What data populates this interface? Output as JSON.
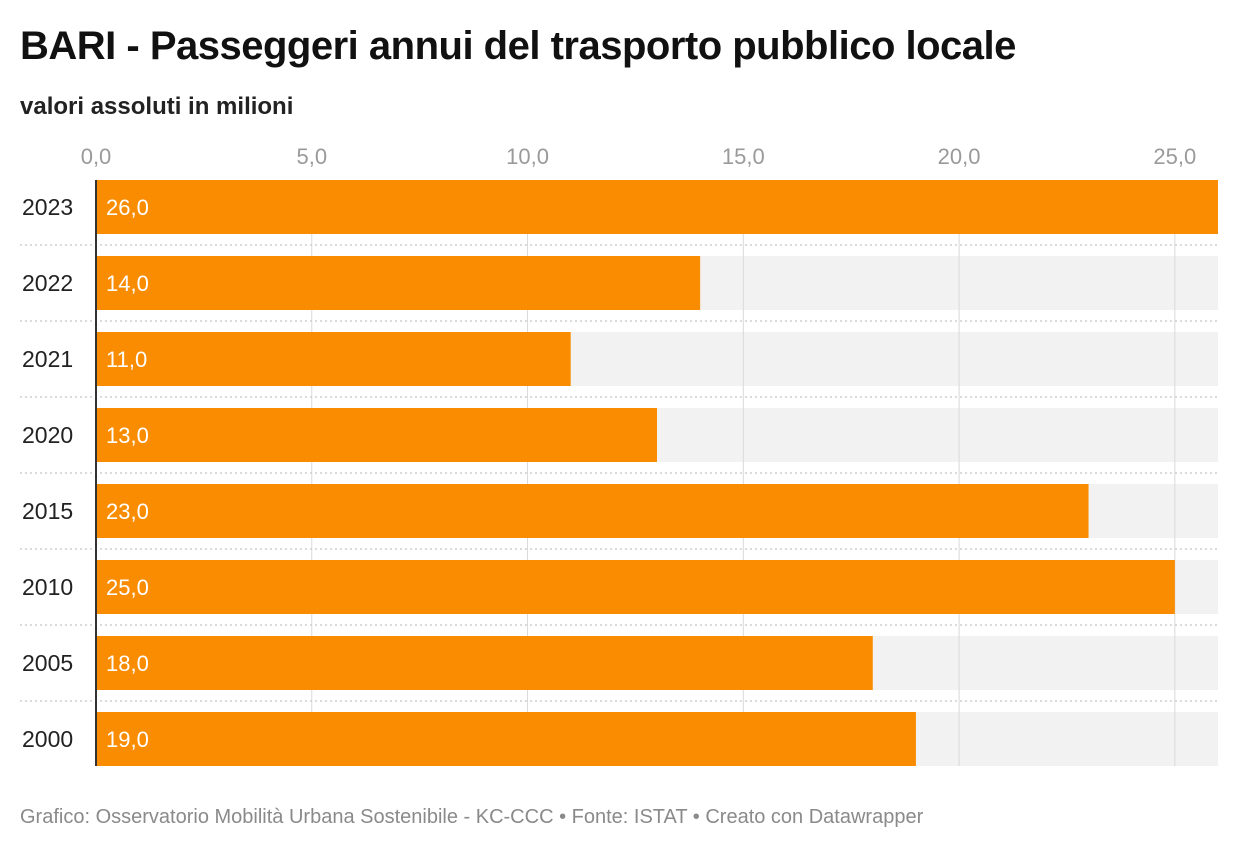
{
  "header": {
    "title": "BARI - Passeggeri annui del trasporto pubblico locale",
    "subtitle": "valori assoluti in milioni"
  },
  "footer": {
    "credit": "Grafico: Osservatorio Mobilità Urbana Sostenibile - KC-CCC • Fonte: ISTAT • Creato con Datawrapper"
  },
  "colors": {
    "bar": "#f98c00",
    "track": "#f2f2f2",
    "grid": "#d9d9d9",
    "tick_text": "#9a9a9a"
  },
  "chart_data": {
    "type": "bar",
    "orientation": "horizontal",
    "title": "BARI - Passeggeri annui del trasporto pubblico locale",
    "subtitle": "valori assoluti in milioni",
    "categories": [
      "2023",
      "2022",
      "2021",
      "2020",
      "2015",
      "2010",
      "2005",
      "2000"
    ],
    "values": [
      26.0,
      14.0,
      11.0,
      13.0,
      23.0,
      25.0,
      18.0,
      19.0
    ],
    "value_labels": [
      "26,0",
      "14,0",
      "11,0",
      "13,0",
      "23,0",
      "25,0",
      "18,0",
      "19,0"
    ],
    "x_ticks": [
      0,
      5,
      10,
      15,
      20,
      25
    ],
    "x_tick_labels": [
      "0,0",
      "5,0",
      "10,0",
      "15,0",
      "20,0",
      "25,0"
    ],
    "xlim": [
      0,
      26
    ],
    "axis_position": "top",
    "grid": true,
    "legend": "none"
  }
}
